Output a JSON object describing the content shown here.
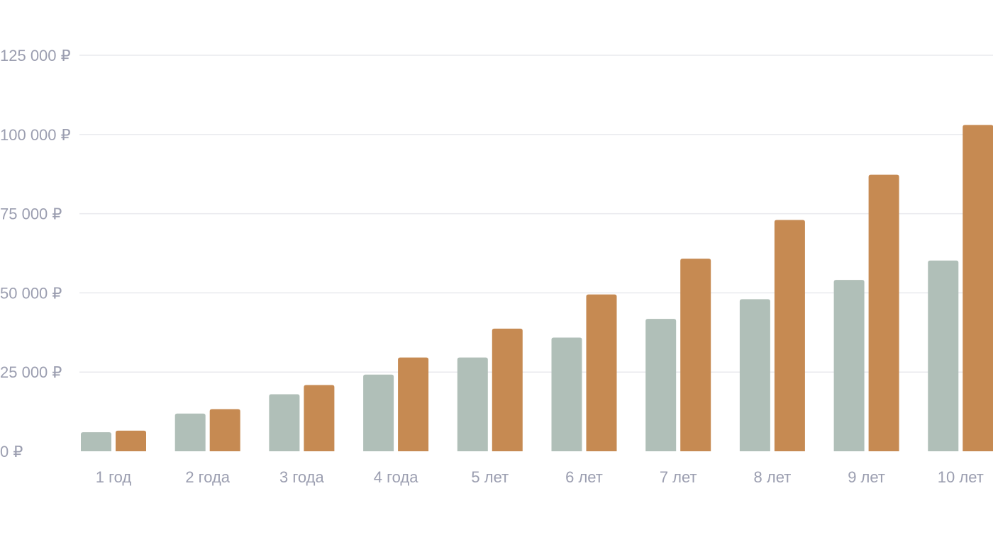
{
  "chart_data": {
    "type": "bar",
    "categories": [
      "1 год",
      "2 года",
      "3 года",
      "4 года",
      "5 лет",
      "6 лет",
      "7 лет",
      "8 лет",
      "9 лет",
      "10 лет"
    ],
    "series": [
      {
        "color": "#b0bfb8",
        "values": [
          6000,
          11900,
          18000,
          24200,
          29600,
          35900,
          41800,
          48000,
          54100,
          60200
        ]
      },
      {
        "color": "#c68a52",
        "values": [
          6500,
          13300,
          20900,
          29600,
          38700,
          49500,
          60800,
          73000,
          87300,
          103000
        ]
      }
    ],
    "ylim": [
      0,
      125000
    ],
    "yticks": [
      0,
      25000,
      50000,
      75000,
      100000,
      125000
    ],
    "ytick_labels": [
      "0 ₽",
      "25 000 ₽",
      "50 000 ₽",
      "75 000 ₽",
      "100 000 ₽",
      "125 000 ₽"
    ],
    "grid": true,
    "title": "",
    "xlabel": "",
    "ylabel": ""
  }
}
